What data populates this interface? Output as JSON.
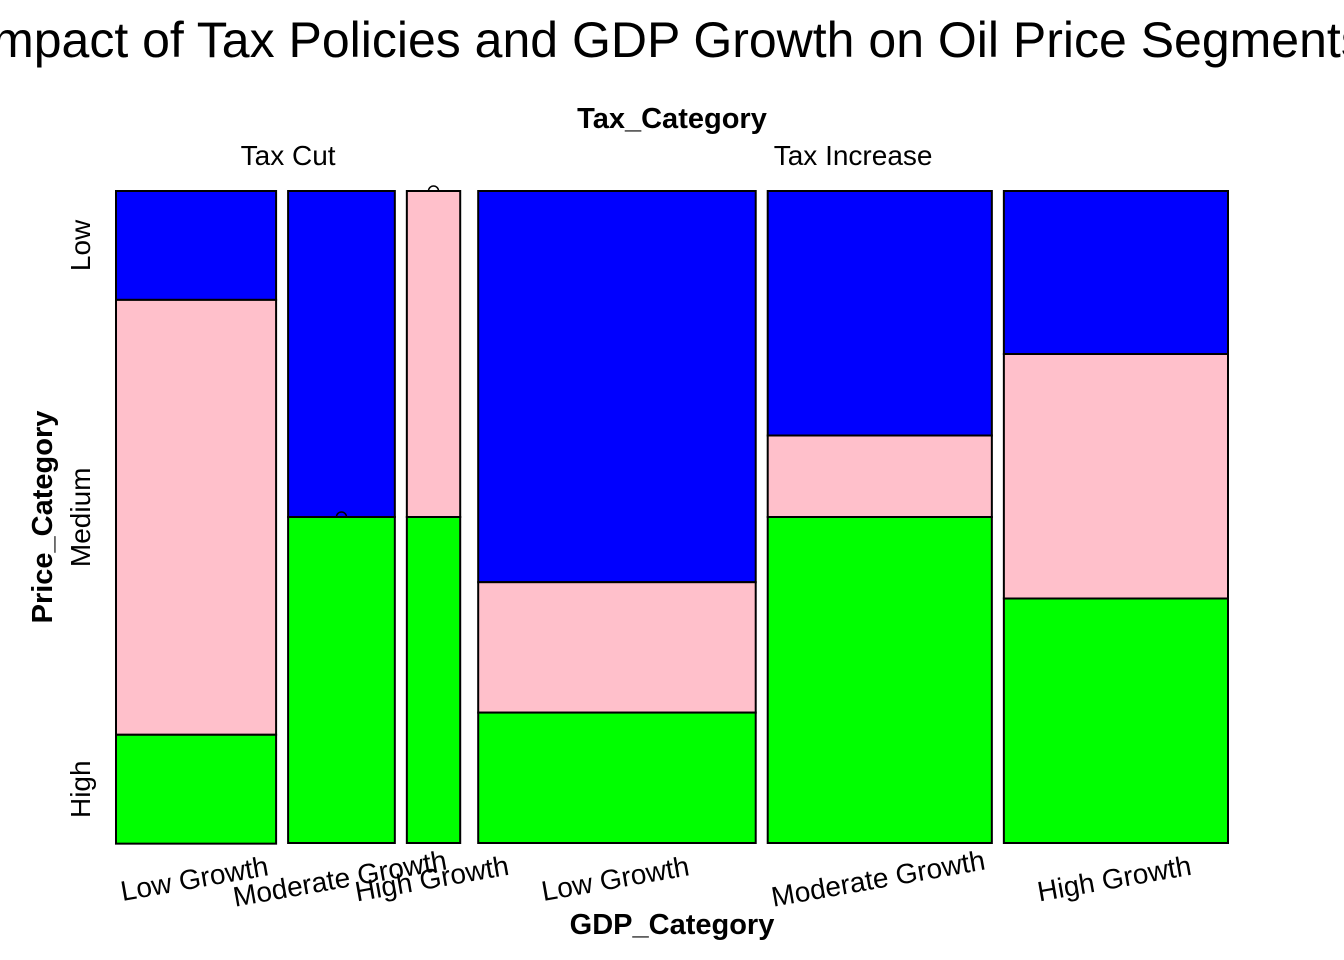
{
  "chart_data": {
    "type": "mosaic",
    "title": "Impact of Tax Policies and GDP Growth on Oil Price Segments",
    "top_variable": "Tax_Category",
    "x_variable": "GDP_Category",
    "y_variable": "Price_Category",
    "y_levels": [
      "Low",
      "Medium",
      "High"
    ],
    "colors": {
      "Low": "#0000ff",
      "Medium": "#ffc0cb",
      "High": "#00ff00"
    },
    "groups": [
      {
        "tax": "Tax Cut",
        "cells": [
          {
            "gdp": "Low Growth",
            "width_share": 0.1485,
            "props": {
              "Low": 0.167,
              "Medium": 0.667,
              "High": 0.167
            }
          },
          {
            "gdp": "Moderate Growth",
            "width_share": 0.099,
            "props": {
              "Low": 0.5,
              "Medium": 0.0,
              "High": 0.5
            }
          },
          {
            "gdp": "High Growth",
            "width_share": 0.0495,
            "props": {
              "Low": 0.0,
              "Medium": 0.5,
              "High": 0.5
            }
          }
        ]
      },
      {
        "tax": "Tax Increase",
        "cells": [
          {
            "gdp": "Low Growth",
            "width_share": 0.2574,
            "props": {
              "Low": 0.6,
              "Medium": 0.2,
              "High": 0.2
            }
          },
          {
            "gdp": "Moderate Growth",
            "width_share": 0.2079,
            "props": {
              "Low": 0.375,
              "Medium": 0.125,
              "High": 0.5
            }
          },
          {
            "gdp": "High Growth",
            "width_share": 0.2079,
            "props": {
              "Low": 0.25,
              "Medium": 0.375,
              "High": 0.375
            }
          }
        ]
      }
    ]
  }
}
